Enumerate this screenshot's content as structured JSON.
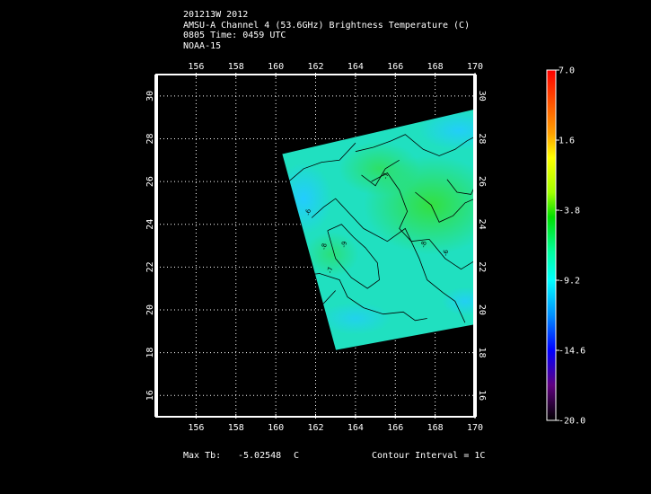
{
  "header": {
    "line1": "201213W 2012",
    "line2": "AMSU-A Channel 4 (53.6GHz) Brightness Temperature (C)",
    "line3": "0805 Time: 0459 UTC",
    "line4": "NOAA-15"
  },
  "map": {
    "lon_range": [
      154,
      170
    ],
    "lat_range": [
      15,
      31
    ],
    "lon_ticks": [
      156,
      158,
      160,
      162,
      164,
      166,
      168,
      170
    ],
    "lat_ticks": [
      16,
      18,
      20,
      22,
      24,
      26,
      28,
      30
    ],
    "grid": "dotted",
    "swath_corners": [
      [
        160.3,
        27.3
      ],
      [
        170.0,
        29.4
      ],
      [
        170.0,
        19.3
      ],
      [
        163.0,
        18.1
      ]
    ],
    "contour_labels": [
      {
        "lon": 161.7,
        "lat": 24.4,
        "text": "-6"
      },
      {
        "lon": 162.5,
        "lat": 22.8,
        "text": "-8"
      },
      {
        "lon": 163.5,
        "lat": 22.9,
        "text": "-9"
      },
      {
        "lon": 167.5,
        "lat": 22.9,
        "text": "-8"
      },
      {
        "lon": 168.6,
        "lat": 22.5,
        "text": "-6"
      },
      {
        "lon": 162.8,
        "lat": 21.7,
        "text": "-7"
      },
      {
        "lon": 165.6,
        "lat": 26.1,
        "text": "-7"
      }
    ]
  },
  "colorbar": {
    "labels": [
      "7.0",
      "1.6",
      "-3.8",
      "-9.2",
      "-14.6",
      "-20.0"
    ],
    "colors": [
      "#ff0000",
      "#ffff00",
      "#00e000",
      "#00ffd0",
      "#0040ff",
      "#ff66ff"
    ]
  },
  "footer": {
    "max_label": "Max Tb:",
    "max_value": "-5.02548",
    "max_unit": "C",
    "contour": "Contour Interval = 1C"
  }
}
